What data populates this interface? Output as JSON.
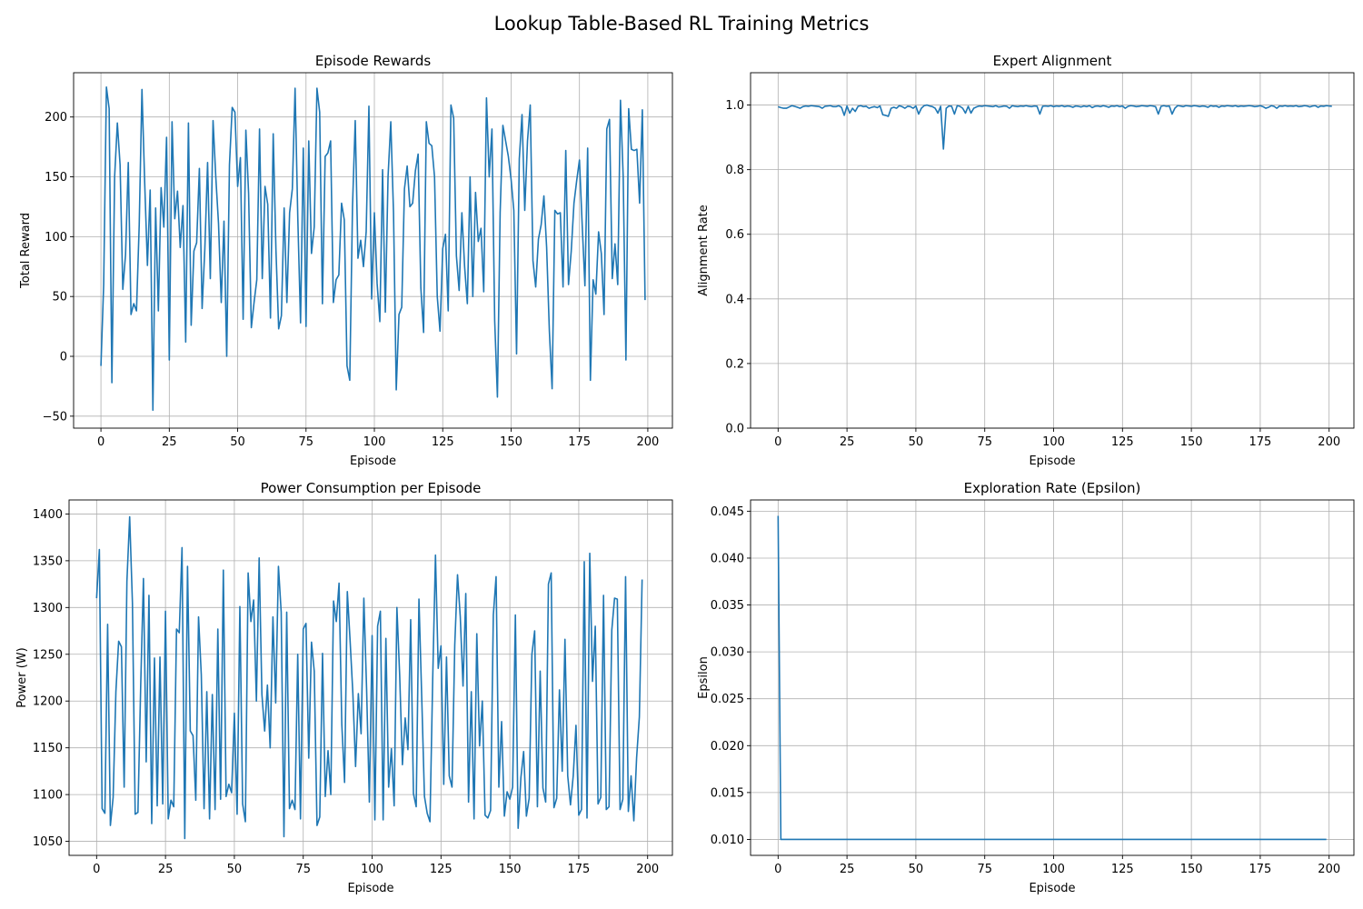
{
  "figure": {
    "title": "Lookup Table-Based RL Training Metrics"
  },
  "chart_data": [
    {
      "type": "line",
      "title": "Episode Rewards",
      "xlabel": "Episode",
      "ylabel": "Total Reward",
      "xlim": [
        -10,
        209
      ],
      "ylim": [
        -60,
        237
      ],
      "xticks": [
        0,
        25,
        50,
        75,
        100,
        125,
        150,
        175,
        200
      ],
      "yticks": [
        -50,
        0,
        50,
        100,
        150,
        200
      ],
      "grid": true,
      "color": "#1f77b4",
      "series": [
        {
          "x_start": 0,
          "x_step": 1,
          "values": [
            -8,
            60,
            225,
            207,
            -22,
            150,
            195,
            160,
            56,
            85,
            162,
            35,
            44,
            38,
            110,
            223,
            145,
            76,
            139,
            -45,
            124,
            38,
            141,
            108,
            183,
            -3,
            196,
            115,
            138,
            91,
            126,
            12,
            195,
            26,
            88,
            95,
            157,
            40,
            90,
            162,
            65,
            197,
            150,
            111,
            45,
            113,
            0,
            160,
            208,
            204,
            142,
            166,
            31,
            189,
            136,
            24,
            45,
            64,
            190,
            65,
            142,
            127,
            32,
            186,
            89,
            23,
            34,
            124,
            45,
            120,
            140,
            224,
            115,
            28,
            174,
            25,
            180,
            86,
            108,
            224,
            204,
            44,
            167,
            170,
            180,
            45,
            64,
            68,
            128,
            114,
            -8,
            -20,
            125,
            197,
            82,
            97,
            75,
            104,
            209,
            48,
            120,
            61,
            29,
            156,
            37,
            150,
            196,
            120,
            -28,
            35,
            41,
            140,
            159,
            125,
            128,
            155,
            169,
            57,
            20,
            196,
            178,
            176,
            150,
            50,
            21,
            90,
            102,
            38,
            210,
            199,
            84,
            55,
            120,
            75,
            44,
            150,
            50,
            137,
            96,
            107,
            54,
            216,
            150,
            190,
            30,
            -34,
            120,
            193,
            180,
            167,
            148,
            122,
            2,
            165,
            202,
            122,
            180,
            210,
            80,
            58,
            98,
            110,
            134,
            91,
            21,
            -27,
            122,
            119,
            120,
            58,
            172,
            60,
            88,
            128,
            147,
            164,
            110,
            59,
            174,
            -20,
            64,
            52,
            104,
            86,
            35,
            190,
            198,
            65,
            94,
            60,
            214,
            150,
            -3,
            207,
            173,
            172,
            173,
            128,
            206,
            47
          ]
        }
      ]
    },
    {
      "type": "line",
      "title": "Expert Alignment",
      "xlabel": "Episode",
      "ylabel": "Alignment Rate",
      "xlim": [
        -10,
        209
      ],
      "ylim": [
        0.0,
        1.1
      ],
      "xticks": [
        0,
        25,
        50,
        75,
        100,
        125,
        150,
        175,
        200
      ],
      "yticks": [
        0.0,
        0.2,
        0.4,
        0.6,
        0.8,
        1.0
      ],
      "grid": true,
      "color": "#1f77b4",
      "series": [
        {
          "x_start": 0,
          "x_step": 1,
          "values": [
            0.995,
            0.992,
            0.99,
            0.99,
            0.994,
            0.998,
            0.996,
            0.993,
            0.99,
            0.995,
            0.997,
            0.996,
            0.998,
            0.997,
            0.996,
            0.995,
            0.99,
            0.996,
            0.997,
            0.998,
            0.995,
            0.995,
            0.998,
            0.993,
            0.968,
            0.997,
            0.975,
            0.99,
            0.98,
            0.996,
            0.998,
            0.995,
            0.996,
            0.99,
            0.993,
            0.995,
            0.992,
            0.997,
            0.97,
            0.968,
            0.965,
            0.99,
            0.993,
            0.99,
            0.998,
            0.995,
            0.99,
            0.996,
            0.995,
            0.99,
            0.997,
            0.972,
            0.99,
            0.998,
            1.0,
            0.997,
            0.995,
            0.99,
            0.975,
            0.996,
            0.864,
            0.99,
            0.997,
            0.996,
            0.972,
            0.998,
            0.996,
            0.99,
            0.975,
            0.996,
            0.975,
            0.99,
            0.994,
            0.997,
            0.996,
            0.998,
            0.997,
            0.996,
            0.995,
            0.998,
            0.994,
            0.995,
            0.997,
            0.996,
            0.99,
            0.998,
            0.996,
            0.995,
            0.997,
            0.996,
            0.998,
            0.996,
            0.995,
            0.997,
            0.996,
            0.972,
            0.996,
            0.997,
            0.996,
            0.998,
            0.995,
            0.997,
            0.996,
            0.998,
            0.995,
            0.997,
            0.996,
            0.993,
            0.997,
            0.996,
            0.994,
            0.997,
            0.995,
            0.998,
            0.992,
            0.996,
            0.997,
            0.995,
            0.998,
            0.996,
            0.993,
            0.997,
            0.996,
            0.998,
            0.995,
            0.997,
            0.99,
            0.996,
            0.998,
            0.997,
            0.995,
            0.996,
            0.998,
            0.997,
            0.996,
            0.998,
            0.997,
            0.995,
            0.972,
            0.996,
            0.998,
            0.996,
            0.997,
            0.972,
            0.99,
            0.998,
            0.997,
            0.995,
            0.998,
            0.997,
            0.996,
            0.998,
            0.997,
            0.995,
            0.997,
            0.996,
            0.993,
            0.998,
            0.996,
            0.997,
            0.993,
            0.997,
            0.996,
            0.998,
            0.997,
            0.996,
            0.998,
            0.995,
            0.997,
            0.996,
            0.997,
            0.998,
            0.997,
            0.995,
            0.996,
            0.998,
            0.995,
            0.99,
            0.993,
            0.998,
            0.996,
            0.99,
            0.997,
            0.996,
            0.998,
            0.996,
            0.997,
            0.996,
            0.998,
            0.995,
            0.996,
            0.998,
            0.997,
            0.994,
            0.997,
            0.998,
            0.993,
            0.997,
            0.996,
            0.998,
            0.997,
            0.996
          ]
        }
      ]
    },
    {
      "type": "line",
      "title": "Power Consumption per Episode",
      "xlabel": "Episode",
      "ylabel": "Power (W)",
      "xlim": [
        -10,
        209
      ],
      "ylim": [
        1035,
        1415
      ],
      "xticks": [
        0,
        25,
        50,
        75,
        100,
        125,
        150,
        175,
        200
      ],
      "yticks": [
        1050,
        1100,
        1150,
        1200,
        1250,
        1300,
        1350,
        1400
      ],
      "grid": true,
      "color": "#1f77b4",
      "series": [
        {
          "x_start": 0,
          "x_step": 1,
          "values": [
            1310,
            1362,
            1085,
            1080,
            1282,
            1067,
            1097,
            1210,
            1264,
            1258,
            1108,
            1328,
            1397,
            1305,
            1079,
            1081,
            1216,
            1331,
            1135,
            1313,
            1069,
            1246,
            1088,
            1247,
            1090,
            1296,
            1074,
            1094,
            1087,
            1277,
            1273,
            1364,
            1053,
            1344,
            1168,
            1163,
            1094,
            1290,
            1228,
            1085,
            1210,
            1074,
            1207,
            1084,
            1277,
            1095,
            1340,
            1098,
            1111,
            1102,
            1187,
            1079,
            1301,
            1090,
            1071,
            1337,
            1285,
            1308,
            1200,
            1353,
            1207,
            1168,
            1217,
            1150,
            1290,
            1198,
            1344,
            1295,
            1055,
            1295,
            1085,
            1094,
            1084,
            1250,
            1074,
            1277,
            1283,
            1139,
            1263,
            1232,
            1067,
            1076,
            1251,
            1098,
            1147,
            1100,
            1307,
            1285,
            1326,
            1175,
            1113,
            1317,
            1265,
            1209,
            1130,
            1208,
            1165,
            1310,
            1213,
            1092,
            1270,
            1073,
            1280,
            1296,
            1073,
            1267,
            1108,
            1149,
            1088,
            1300,
            1228,
            1132,
            1182,
            1148,
            1287,
            1101,
            1087,
            1309,
            1205,
            1098,
            1080,
            1071,
            1225,
            1356,
            1235,
            1259,
            1111,
            1247,
            1120,
            1108,
            1260,
            1335,
            1290,
            1216,
            1315,
            1092,
            1210,
            1074,
            1272,
            1152,
            1200,
            1078,
            1075,
            1083,
            1292,
            1333,
            1108,
            1178,
            1077,
            1103,
            1095,
            1108,
            1292,
            1064,
            1118,
            1146,
            1077,
            1096,
            1250,
            1275,
            1087,
            1232,
            1107,
            1092,
            1325,
            1337,
            1086,
            1096,
            1212,
            1125,
            1266,
            1120,
            1089,
            1120,
            1174,
            1078,
            1084,
            1349,
            1075,
            1358,
            1221,
            1280,
            1090,
            1097,
            1313,
            1084,
            1087,
            1276,
            1310,
            1309,
            1084,
            1095,
            1333,
            1082,
            1120,
            1072,
            1139,
            1183,
            1330
          ]
        }
      ]
    },
    {
      "type": "line",
      "title": "Exploration Rate (Epsilon)",
      "xlabel": "Episode",
      "ylabel": "Epsilon",
      "xlim": [
        -10,
        209
      ],
      "ylim": [
        0.0083,
        0.0462
      ],
      "xticks": [
        0,
        25,
        50,
        75,
        100,
        125,
        150,
        175,
        200
      ],
      "yticks": [
        0.01,
        0.015,
        0.02,
        0.025,
        0.03,
        0.035,
        0.04,
        0.045
      ],
      "grid": true,
      "color": "#1f77b4",
      "series": [
        {
          "x": [
            0,
            1,
            199
          ],
          "values": [
            0.0445,
            0.01,
            0.01
          ]
        }
      ]
    }
  ]
}
